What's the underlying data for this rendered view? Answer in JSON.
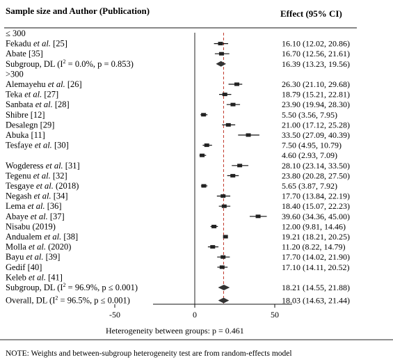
{
  "chart_data": {
    "type": "forest",
    "col_header_left": "Sample size and Author (Publication)",
    "col_header_right": "Effect (95% CI)",
    "reference_line": 18.03,
    "x_ticks": [
      -50,
      0,
      50
    ],
    "xlim": [
      -60,
      70
    ],
    "footer_heterogeneity": "Heterogeneity between groups: p = 0.461",
    "note": "NOTE: Weights and between-subgroup heterogeneity test are from random-effects model",
    "subgroups": [
      {
        "label": "≤ 300",
        "studies": [
          {
            "author": "Fekadu",
            "etal": "et al.",
            "ref": "[25]",
            "effect": 16.1,
            "ci_low": 12.02,
            "ci_high": 20.86,
            "ci_text": "16.10 (12.02, 20.86)"
          },
          {
            "author": "Abate",
            "etal": "",
            "ref": "[35]",
            "effect": 16.7,
            "ci_low": 12.56,
            "ci_high": 21.61,
            "ci_text": "16.70 (12.56, 21.61)"
          }
        ],
        "summary": {
          "label_pre": "Subgroup, DL (I",
          "sup": "2",
          "label_post": "= 0.0%, p = 0.853)",
          "effect": 16.39,
          "ci_low": 13.23,
          "ci_high": 19.56,
          "ci_text": "16.39 (13.23, 19.56)"
        }
      },
      {
        "label": ">300",
        "studies": [
          {
            "author": "Alemayehu",
            "etal": "et al.",
            "ref": "[26]",
            "effect": 26.3,
            "ci_low": 21.1,
            "ci_high": 29.68,
            "ci_text": "26.30 (21.10, 29.68)"
          },
          {
            "author": "Teka",
            "etal": "et al.",
            "ref": "[27]",
            "effect": 18.79,
            "ci_low": 15.21,
            "ci_high": 22.81,
            "ci_text": "18.79 (15.21, 22.81)"
          },
          {
            "author": "Sanbata",
            "etal": "et al.",
            "ref": "[28]",
            "effect": 23.9,
            "ci_low": 19.94,
            "ci_high": 28.3,
            "ci_text": "23.90 (19.94, 28.30)"
          },
          {
            "author": "Shibre",
            "etal": "",
            "ref": "[12]",
            "effect": 5.5,
            "ci_low": 3.56,
            "ci_high": 7.95,
            "ci_text": "5.50 (3.56, 7.95)"
          },
          {
            "author": "Desalegn",
            "etal": "",
            "ref": "[29]",
            "effect": 21.0,
            "ci_low": 17.12,
            "ci_high": 25.28,
            "ci_text": "21.00 (17.12, 25.28)"
          },
          {
            "author": "Abuka",
            "etal": "",
            "ref": "[11]",
            "effect": 33.5,
            "ci_low": 27.09,
            "ci_high": 40.39,
            "ci_text": "33.50 (27.09, 40.39)"
          },
          {
            "author": "Tesfaye",
            "etal": "et al.",
            "ref": "[30]",
            "effect": 7.5,
            "ci_low": 4.95,
            "ci_high": 10.79,
            "ci_text": "7.50 (4.95, 10.79)"
          },
          {
            "author": "",
            "etal": "",
            "ref": "",
            "effect": 4.6,
            "ci_low": 2.93,
            "ci_high": 7.09,
            "ci_text": "4.60 (2.93, 7.09)"
          },
          {
            "author": "Wogderess",
            "etal": "et al.",
            "ref": "[31]",
            "effect": 28.1,
            "ci_low": 23.14,
            "ci_high": 33.5,
            "ci_text": "28.10 (23.14, 33.50)"
          },
          {
            "author": "Tegenu",
            "etal": "et al.",
            "ref": "[32]",
            "effect": 23.8,
            "ci_low": 20.28,
            "ci_high": 27.5,
            "ci_text": "23.80 (20.28, 27.50)"
          },
          {
            "author": "Tesgaye",
            "etal": "et al.",
            "ref": "(2018)",
            "effect": 5.65,
            "ci_low": 3.87,
            "ci_high": 7.92,
            "ci_text": "5.65 (3.87, 7.92)"
          },
          {
            "author": "Negash",
            "etal": "et al.",
            "ref": "[34]",
            "effect": 17.7,
            "ci_low": 13.84,
            "ci_high": 22.19,
            "ci_text": "17.70 (13.84, 22.19)"
          },
          {
            "author": "Lema",
            "etal": "et al.",
            "ref": "[36]",
            "effect": 18.4,
            "ci_low": 15.07,
            "ci_high": 22.23,
            "ci_text": "18.40 (15.07, 22.23)"
          },
          {
            "author": "Abaye",
            "etal": "et al.",
            "ref": "[37]",
            "effect": 39.6,
            "ci_low": 34.36,
            "ci_high": 45.0,
            "ci_text": "39.60 (34.36, 45.00)"
          },
          {
            "author": "Nisabu",
            "etal": "",
            "ref": "(2019)",
            "effect": 12.0,
            "ci_low": 9.81,
            "ci_high": 14.46,
            "ci_text": "12.00 (9.81, 14.46)"
          },
          {
            "author": "Andualem",
            "etal": "et al.",
            "ref": "[38]",
            "effect": 19.21,
            "ci_low": 18.21,
            "ci_high": 20.25,
            "ci_text": "19.21 (18.21, 20.25)"
          },
          {
            "author": "Molla",
            "etal": "et al.",
            "ref": "(2020)",
            "effect": 11.2,
            "ci_low": 8.22,
            "ci_high": 14.79,
            "ci_text": "11.20 (8.22, 14.79)"
          },
          {
            "author": "Bayu",
            "etal": "et al.",
            "ref": "[39]",
            "effect": 17.7,
            "ci_low": 14.02,
            "ci_high": 21.9,
            "ci_text": "17.70 (14.02, 21.90)"
          },
          {
            "author": "Gedif",
            "etal": "",
            "ref": "[40]",
            "effect": 17.1,
            "ci_low": 14.11,
            "ci_high": 20.52,
            "ci_text": "17.10 (14.11, 20.52)"
          },
          {
            "author": "Keleb",
            "etal": "et al.",
            "ref": "[41]",
            "effect": null,
            "ci_low": null,
            "ci_high": null,
            "ci_text": ""
          }
        ],
        "summary": {
          "label_pre": "Subgroup, DL (I",
          "sup": "2",
          "label_post": "= 96.9%, p ≤ 0.001)",
          "effect": 18.21,
          "ci_low": 14.55,
          "ci_high": 21.88,
          "ci_text": "18.21 (14.55, 21.88)"
        }
      }
    ],
    "overall": {
      "label_pre": "Overall, DL (I",
      "sup": "2",
      "label_post": "= 96.5%, p ≤ 0.001)",
      "effect": 18.03,
      "ci_low": 14.63,
      "ci_high": 21.44,
      "ci_text": "18.03 (14.63, 21.44)"
    }
  }
}
